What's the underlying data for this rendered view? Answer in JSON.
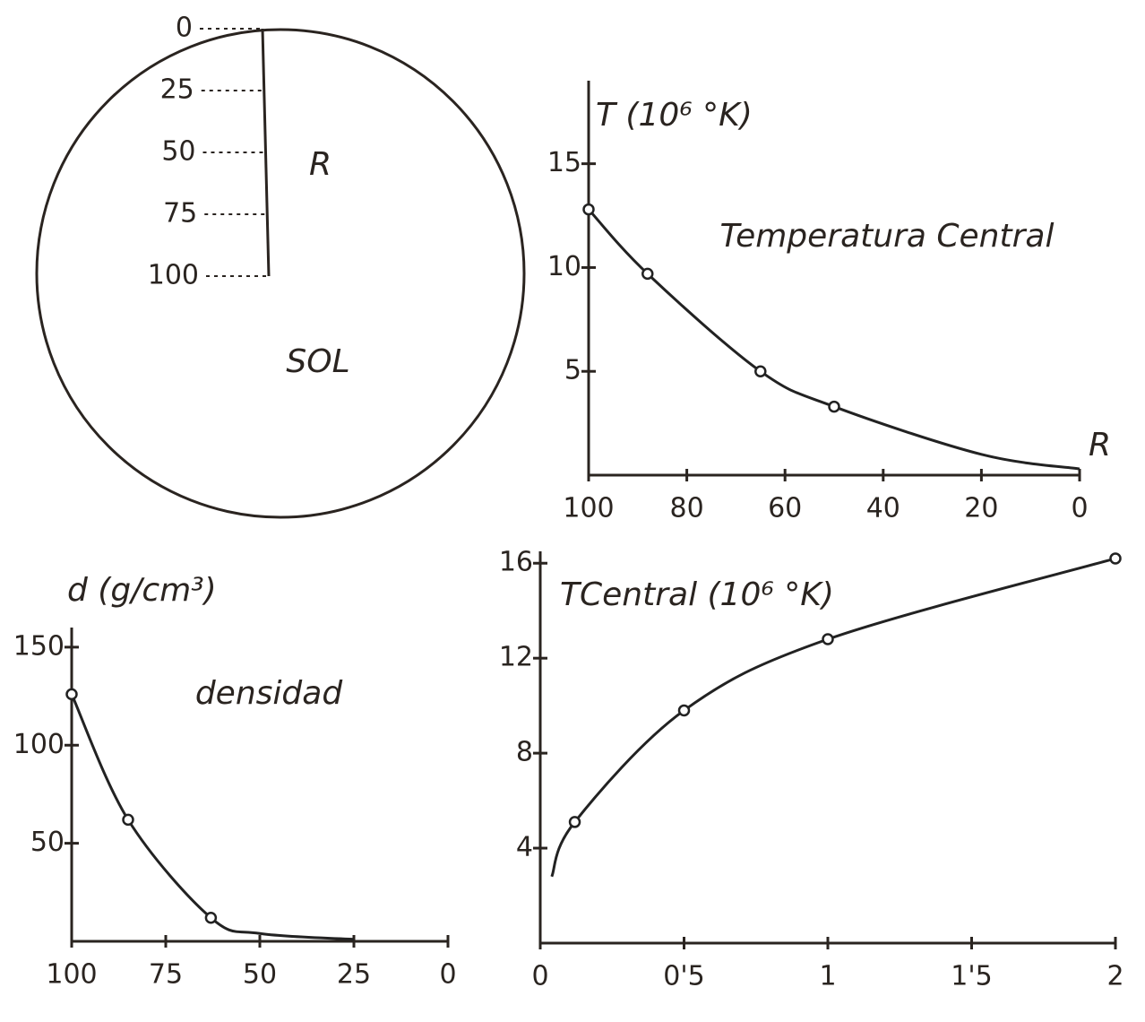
{
  "diagram": {
    "label": "SOL",
    "radius_label": "R",
    "radius_ticks": [
      0,
      25,
      50,
      75,
      100
    ]
  },
  "chart_data": [
    {
      "type": "line",
      "title": "Temperatura Central",
      "y_label": "T (10⁶ °K)",
      "x_label": "R",
      "x": [
        100,
        88,
        65,
        50,
        20,
        0
      ],
      "values": [
        12.8,
        9.7,
        5.0,
        3.3,
        1.0,
        0.3
      ],
      "markers": [
        true,
        true,
        true,
        true,
        false,
        false
      ],
      "xlim": [
        100,
        0
      ],
      "ylim": [
        0,
        19
      ],
      "xticks": [
        100,
        80,
        60,
        40,
        20,
        0
      ],
      "yticks": [
        5,
        10,
        15
      ],
      "color": "#222"
    },
    {
      "type": "line",
      "title": "densidad",
      "y_label": "d (g/cm³)",
      "x": [
        100,
        85,
        63,
        50,
        25
      ],
      "values": [
        126,
        62,
        12,
        4,
        1
      ],
      "markers": [
        true,
        true,
        true,
        false,
        false
      ],
      "xlim": [
        100,
        0
      ],
      "ylim": [
        0,
        160
      ],
      "xticks": [
        100,
        75,
        50,
        25,
        0
      ],
      "yticks": [
        50,
        100,
        150
      ],
      "color": "#222"
    },
    {
      "type": "line",
      "y_label": "TCentral (10⁶ °K)",
      "x": [
        0.04,
        0.12,
        0.5,
        1,
        2
      ],
      "values": [
        2.8,
        5.1,
        9.8,
        12.8,
        16.2
      ],
      "markers": [
        false,
        true,
        true,
        true,
        true
      ],
      "xlim": [
        0,
        2
      ],
      "ylim": [
        0,
        16.5
      ],
      "xticks": [
        0,
        {
          "value": 0.5,
          "label": "0'5"
        },
        1,
        {
          "value": 1.5,
          "label": "1'5"
        },
        2
      ],
      "yticks": [
        4,
        8,
        12,
        16
      ],
      "color": "#222"
    }
  ]
}
